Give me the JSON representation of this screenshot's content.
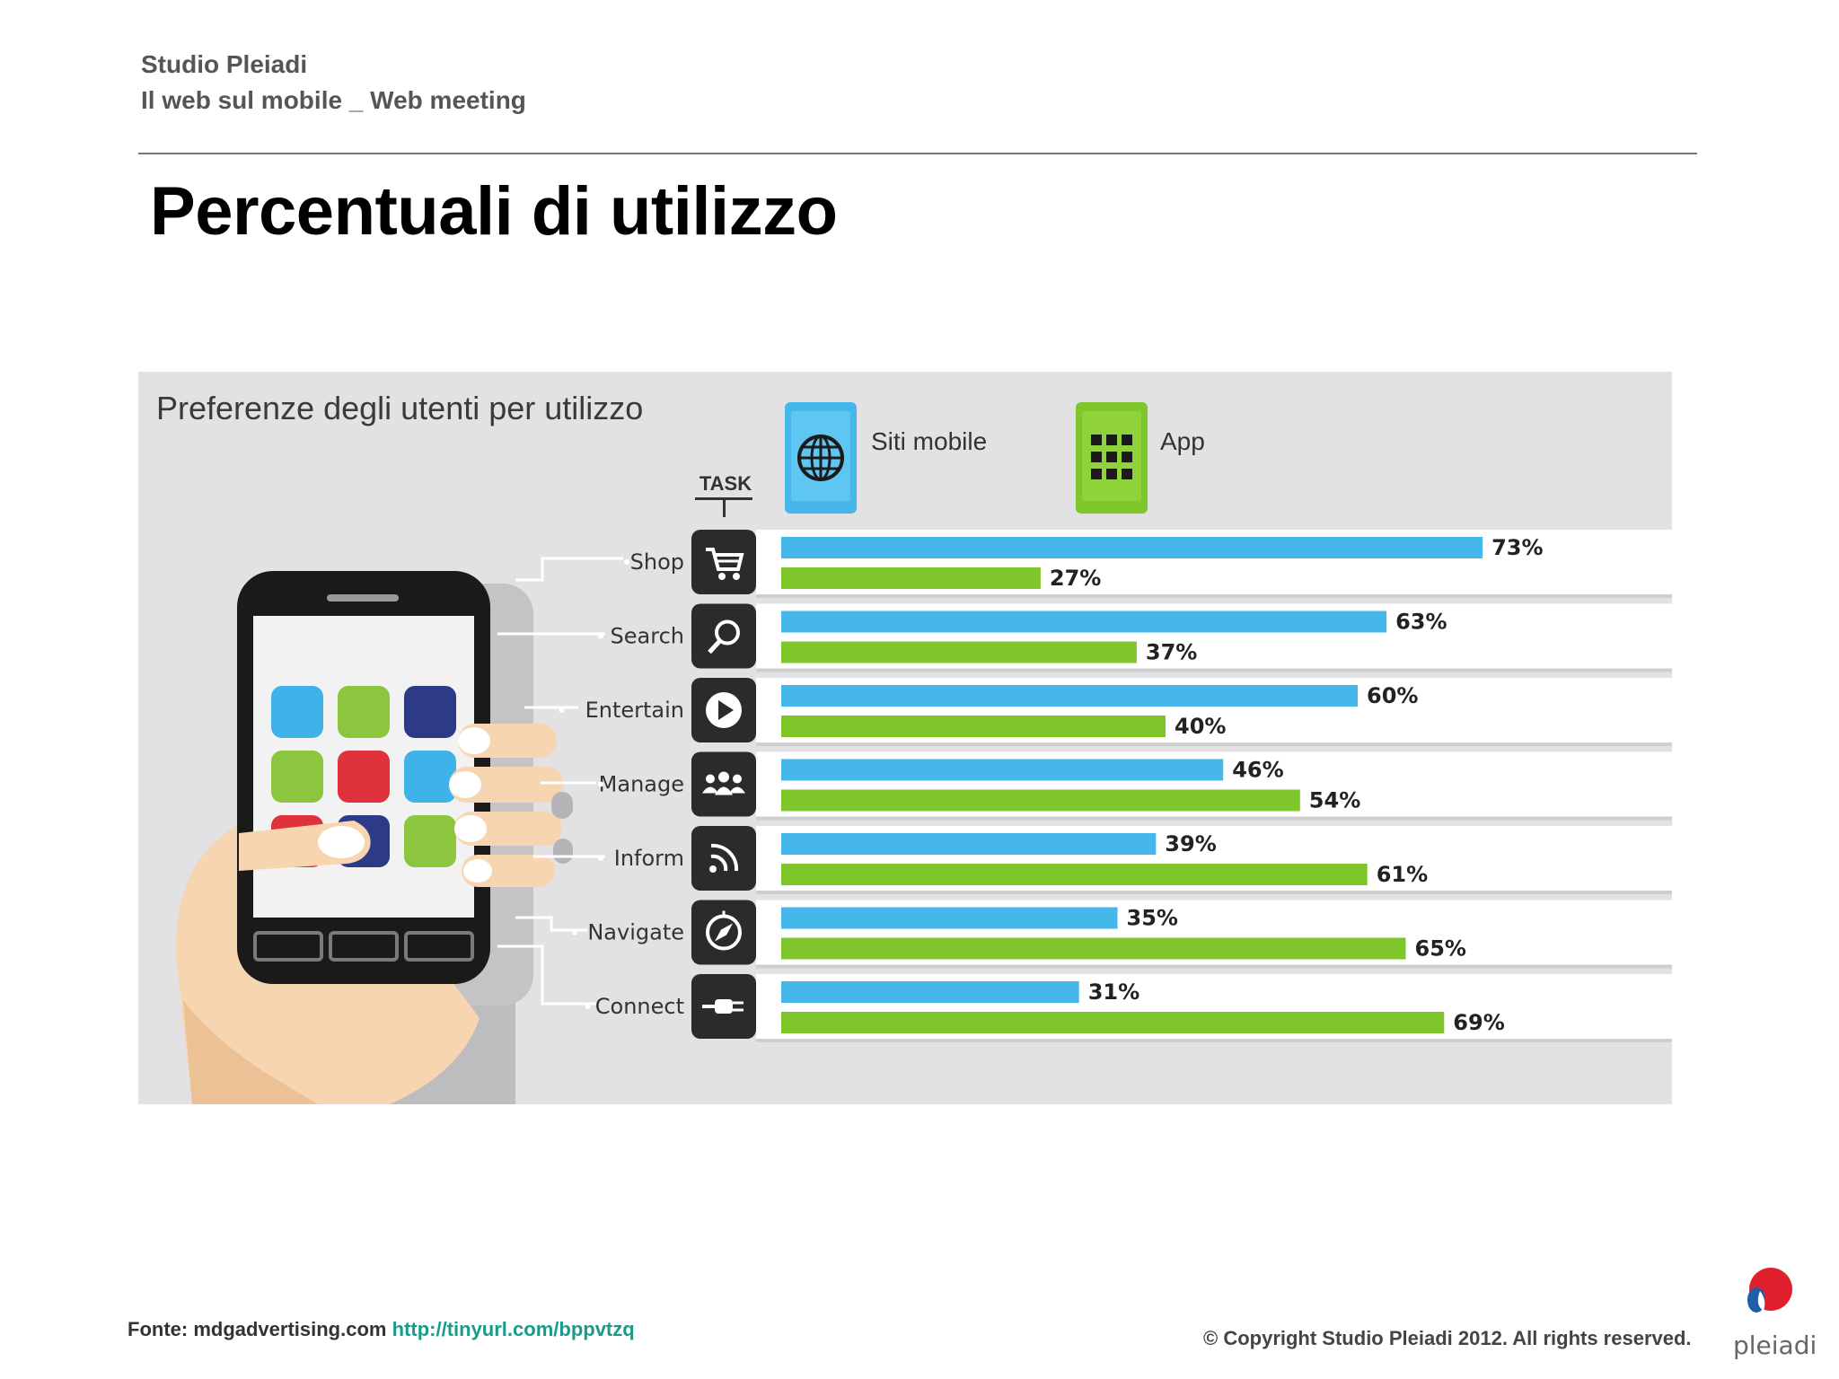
{
  "header": {
    "line1": "Studio Pleiadi",
    "line2": "Il web sul mobile _ Web meeting"
  },
  "slide_title": "Percentuali di utilizzo",
  "footer": {
    "source_prefix": "Fonte: mdgadvertising.com",
    "source_link": "http://tinyurl.com/bppvtzq",
    "copyright": "© Copyright Studio Pleiadi 2012. All rights reserved.",
    "logo_text": "pleiadi"
  },
  "colors": {
    "web": "#46b7eb",
    "app": "#7fc62a",
    "icon_bg": "#2b2b2b",
    "row_bg": "#ffffff",
    "logo_red": "#e0202e",
    "logo_blue": "#1d5fa8"
  },
  "chart_data": {
    "type": "bar",
    "orientation": "horizontal",
    "title": "Preferenze degli utenti per utilizzo",
    "category_header": "TASK",
    "categories": [
      "Shop",
      "Search",
      "Entertain",
      "Manage",
      "Inform",
      "Navigate",
      "Connect"
    ],
    "icons": [
      "cart-icon",
      "search-icon",
      "play-icon",
      "group-icon",
      "rss-icon",
      "compass-icon",
      "plug-icon"
    ],
    "series": [
      {
        "name": "Siti mobile",
        "values": [
          73,
          63,
          60,
          46,
          39,
          35,
          31
        ]
      },
      {
        "name": "App",
        "values": [
          27,
          37,
          40,
          54,
          61,
          65,
          69
        ]
      }
    ],
    "value_suffix": "%",
    "xlim": [
      0,
      100
    ],
    "legend_position": "top"
  }
}
